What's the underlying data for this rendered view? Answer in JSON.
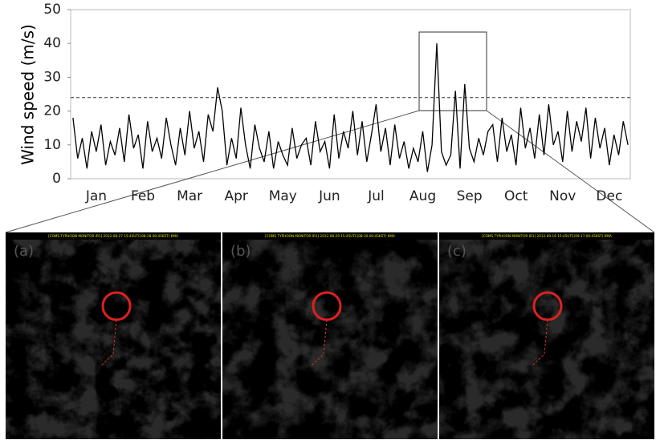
{
  "chart_data": {
    "type": "line",
    "y_label": "Wind speed (m/s)",
    "categories": [
      null,
      null,
      null,
      null,
      null,
      "Jan",
      null,
      null,
      null,
      null,
      null,
      null,
      null,
      null,
      null,
      "Feb",
      null,
      null,
      null,
      null,
      null,
      null,
      null,
      null,
      null,
      "Mar",
      null,
      null,
      null,
      null,
      null,
      null,
      null,
      null,
      null,
      "Apr",
      null,
      null,
      null,
      null,
      null,
      null,
      null,
      null,
      null,
      "May",
      null,
      null,
      null,
      null,
      null,
      null,
      null,
      null,
      null,
      "Jun",
      null,
      null,
      null,
      null,
      null,
      null,
      null,
      null,
      null,
      "Jul",
      null,
      null,
      null,
      null,
      null,
      null,
      null,
      null,
      null,
      "Aug",
      null,
      null,
      null,
      null,
      null,
      null,
      null,
      null,
      null,
      "Sep",
      null,
      null,
      null,
      null,
      null,
      null,
      null,
      null,
      null,
      "Oct",
      null,
      null,
      null,
      null,
      null,
      null,
      null,
      null,
      null,
      "Nov",
      null,
      null,
      null,
      null,
      null,
      null,
      null,
      null,
      null,
      "Dec",
      null,
      null,
      null,
      null
    ],
    "series": [
      {
        "name": "Wind speed",
        "color": "#000000",
        "values": [
          18,
          6,
          12,
          3,
          14,
          8,
          16,
          4,
          11,
          7,
          15,
          5,
          19,
          9,
          13,
          3,
          17,
          8,
          12,
          6,
          18,
          10,
          4,
          15,
          7,
          20,
          9,
          14,
          5,
          19,
          14,
          27,
          20,
          4,
          12,
          6,
          21,
          10,
          3,
          16,
          9,
          5,
          14,
          3,
          11,
          7,
          4,
          15,
          6,
          10,
          12,
          4,
          17,
          8,
          11,
          3,
          19,
          6,
          14,
          9,
          20,
          7,
          17,
          5,
          13,
          22,
          8,
          15,
          4,
          16,
          6,
          11,
          3,
          9,
          5,
          14,
          2,
          10,
          40,
          8,
          4,
          7,
          26,
          3,
          28,
          9,
          5,
          12,
          7,
          14,
          16,
          5,
          18,
          8,
          13,
          4,
          21,
          9,
          15,
          6,
          19,
          7,
          22,
          10,
          14,
          5,
          20,
          8,
          17,
          11,
          21,
          6,
          18,
          9,
          15,
          4,
          13,
          7,
          17,
          10
        ]
      }
    ],
    "reference_line": 24,
    "ylim": [
      0,
      50
    ],
    "yticks": [
      0,
      10,
      20,
      30,
      40,
      50
    ],
    "grid": false
  },
  "panels": [
    {
      "label": "(a)",
      "header": "[COMS TYPHOON MONITOR IR1] 2012-08-27 15:45UTC(08-28 00:45KST) KMA"
    },
    {
      "label": "(b)",
      "header": "[COMS TYPHOON MONITOR IR1] 2012-08-29 15:45UTC(08-30 00:45KST) KMA"
    },
    {
      "label": "(c)",
      "header": "[COMS TYPHOON MONITOR IR1] 2012-09-16 15:45UTC(09-17 00:45KST) KMA"
    }
  ]
}
